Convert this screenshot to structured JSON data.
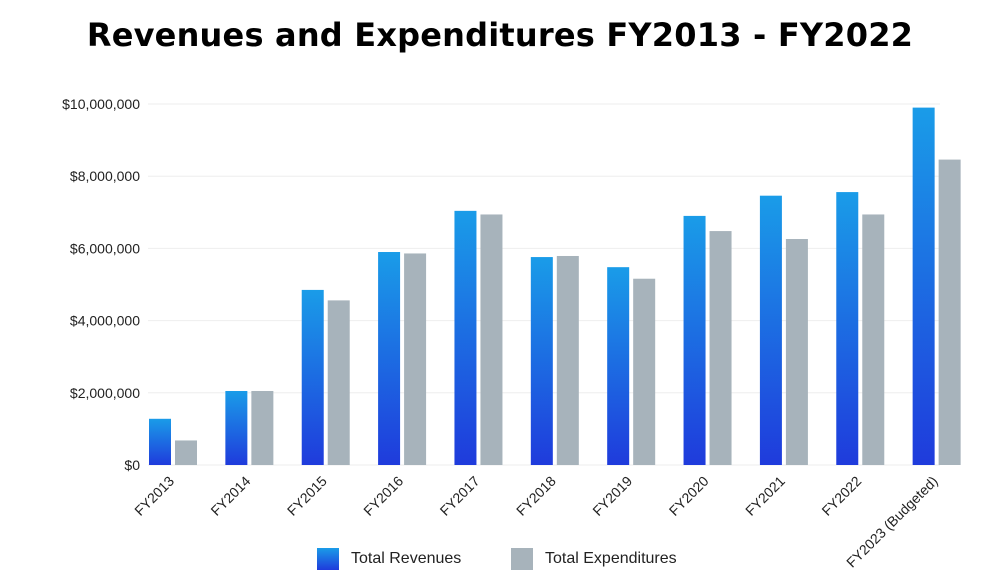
{
  "title": "Revenues and Expenditures FY2013 - FY2022",
  "chart_data": {
    "type": "bar",
    "title": "Revenues and Expenditures FY2013 - FY2022",
    "categories": [
      "FY2013",
      "FY2014",
      "FY2015",
      "FY2016",
      "FY2017",
      "FY2018",
      "FY2019",
      "FY2020",
      "FY2021",
      "FY2022",
      "FY2023 (Budgeted)"
    ],
    "series": [
      {
        "name": "Total Revenues",
        "values": [
          1280000,
          2050000,
          4850000,
          5900000,
          7040000,
          5760000,
          5480000,
          6900000,
          7460000,
          7560000,
          9900000
        ]
      },
      {
        "name": "Total Expenditures",
        "values": [
          680000,
          2050000,
          4560000,
          5860000,
          6940000,
          5790000,
          5160000,
          6480000,
          6260000,
          6940000,
          8460000
        ]
      }
    ],
    "ylim": [
      0,
      10000000
    ],
    "yticks": [
      "$0",
      "$2,000,000",
      "$4,000,000",
      "$6,000,000",
      "$8,000,000",
      "$10,000,000"
    ],
    "ytick_values": [
      0,
      2000000,
      4000000,
      6000000,
      8000000,
      10000000
    ],
    "grid": true,
    "legend_position": "bottom",
    "colors": {
      "revenues_top": "#1a9ce8",
      "revenues_bottom": "#1f3bdc",
      "expenditures": "#a7b3bb",
      "grid": "#eeeeee"
    }
  }
}
